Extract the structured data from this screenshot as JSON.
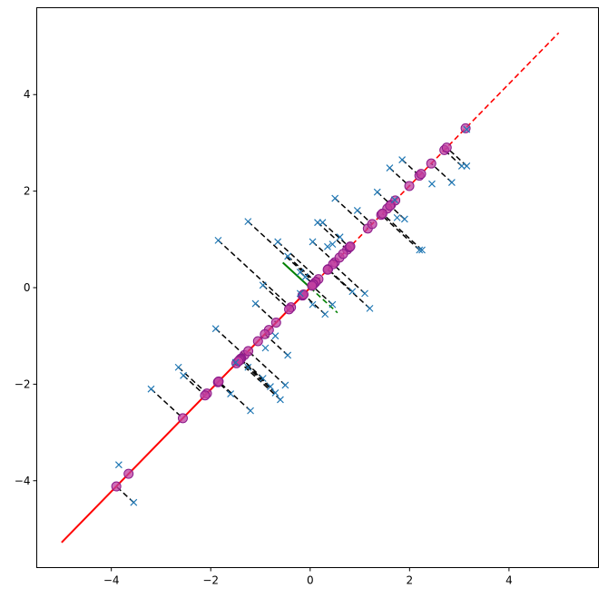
{
  "chart_data": {
    "type": "scatter",
    "title": "",
    "xlabel": "",
    "ylabel": "",
    "xlim": [
      -5.5,
      5.8
    ],
    "ylim": [
      -5.8,
      5.8
    ],
    "x_ticks": [
      -4,
      -2,
      0,
      2,
      4
    ],
    "y_ticks": [
      -4,
      -2,
      0,
      2,
      4
    ],
    "x_tick_labels": [
      "−4",
      "−2",
      "0",
      "2",
      "4"
    ],
    "y_tick_labels": [
      "−4",
      "−2",
      "0",
      "2",
      "4"
    ],
    "grid": false,
    "colors": {
      "original_points": "#1f77b4",
      "projected_points": "#c03fa0",
      "projected_points_edge": "#8a1a8a",
      "principal_axis": "#ff0000",
      "secondary_axis": "#008000",
      "projection_lines": "#000000"
    },
    "principal_axis": {
      "solid": [
        [
          -5.0,
          -5.28
        ],
        [
          0.0,
          0.0
        ]
      ],
      "dashed": [
        [
          0.0,
          0.0
        ],
        [
          5.0,
          5.28
        ]
      ]
    },
    "secondary_axis": {
      "solid": [
        [
          -0.55,
          0.52
        ],
        [
          0.0,
          0.0
        ]
      ],
      "dashed": [
        [
          0.0,
          0.0
        ],
        [
          0.55,
          -0.52
        ]
      ]
    },
    "points": [
      {
        "x": -3.85,
        "y": -3.67
      },
      {
        "x": -3.55,
        "y": -4.45
      },
      {
        "x": -3.2,
        "y": -2.1
      },
      {
        "x": -2.65,
        "y": -1.65
      },
      {
        "x": -2.55,
        "y": -1.82
      },
      {
        "x": -1.9,
        "y": -0.85
      },
      {
        "x": -1.85,
        "y": 0.98
      },
      {
        "x": -1.6,
        "y": -2.2
      },
      {
        "x": -1.5,
        "y": -1.55
      },
      {
        "x": -1.25,
        "y": 1.37
      },
      {
        "x": -1.2,
        "y": -2.55
      },
      {
        "x": -1.25,
        "y": -1.65
      },
      {
        "x": -1.1,
        "y": -0.33
      },
      {
        "x": -0.95,
        "y": -1.88
      },
      {
        "x": -0.9,
        "y": -1.25
      },
      {
        "x": -0.95,
        "y": 0.05
      },
      {
        "x": -0.8,
        "y": -2.05
      },
      {
        "x": -0.7,
        "y": -1.0
      },
      {
        "x": -0.7,
        "y": -2.18
      },
      {
        "x": -0.6,
        "y": -2.32
      },
      {
        "x": -0.65,
        "y": 0.95
      },
      {
        "x": -0.5,
        "y": -2.02
      },
      {
        "x": -0.45,
        "y": -1.4
      },
      {
        "x": -0.45,
        "y": 0.65
      },
      {
        "x": -0.2,
        "y": 0.32
      },
      {
        "x": -0.2,
        "y": -0.12
      },
      {
        "x": -0.1,
        "y": 0.22
      },
      {
        "x": 0.05,
        "y": 0.95
      },
      {
        "x": 0.05,
        "y": -0.35
      },
      {
        "x": 0.15,
        "y": 1.35
      },
      {
        "x": 0.25,
        "y": 1.35
      },
      {
        "x": 0.3,
        "y": -0.55
      },
      {
        "x": 0.35,
        "y": 0.85
      },
      {
        "x": 0.45,
        "y": 0.9
      },
      {
        "x": 0.45,
        "y": -0.35
      },
      {
        "x": 0.5,
        "y": 1.85
      },
      {
        "x": 0.6,
        "y": 1.05
      },
      {
        "x": 0.85,
        "y": -0.08
      },
      {
        "x": 0.95,
        "y": 1.6
      },
      {
        "x": 1.1,
        "y": -0.12
      },
      {
        "x": 1.2,
        "y": -0.43
      },
      {
        "x": 1.35,
        "y": 1.98
      },
      {
        "x": 1.6,
        "y": 2.48
      },
      {
        "x": 1.7,
        "y": 1.82
      },
      {
        "x": 1.75,
        "y": 1.45
      },
      {
        "x": 1.85,
        "y": 2.65
      },
      {
        "x": 1.9,
        "y": 1.42
      },
      {
        "x": 2.2,
        "y": 0.78
      },
      {
        "x": 2.25,
        "y": 0.78
      },
      {
        "x": 2.45,
        "y": 2.15
      },
      {
        "x": 2.85,
        "y": 2.18
      },
      {
        "x": 3.05,
        "y": 2.52
      },
      {
        "x": 3.15,
        "y": 2.52
      },
      {
        "x": 3.15,
        "y": 3.28
      }
    ]
  }
}
